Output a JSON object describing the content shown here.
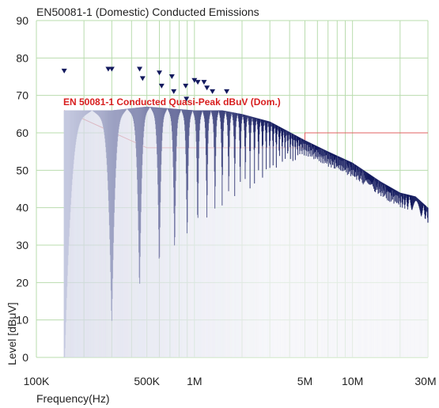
{
  "chart_data": {
    "type": "line",
    "title": "EN50081-1 (Domestic) Conducted Emissions",
    "xlabel": "Frequency(Hz)",
    "ylabel": "Level [dBμV]",
    "x_scale": "log",
    "xlim": [
      100000,
      30000000
    ],
    "ylim": [
      0,
      90
    ],
    "y_ticks": [
      "90",
      "80",
      "70",
      "60",
      "50",
      "40",
      "30",
      "20",
      "10",
      "0"
    ],
    "x_ticks": [
      {
        "label": "100K",
        "value": 100000
      },
      {
        "label": "500K",
        "value": 500000
      },
      {
        "label": "1M",
        "value": 1000000
      },
      {
        "label": "5M",
        "value": 5000000
      },
      {
        "label": "10M",
        "value": 10000000
      },
      {
        "label": "30M",
        "value": 30000000
      }
    ],
    "grid": true,
    "limit_line": {
      "label": "EN 50081-1 Conducted Quasi-Peak dBuV (Dom.)",
      "color": "#e06060",
      "points": [
        [
          150000,
          66
        ],
        [
          500000,
          56
        ],
        [
          5000000,
          56
        ],
        [
          5000000,
          60
        ],
        [
          30000000,
          60
        ]
      ]
    },
    "spectrum_envelope": [
      [
        150000,
        66
      ],
      [
        300000,
        66
      ],
      [
        500000,
        67
      ],
      [
        1000000,
        66
      ],
      [
        1500000,
        66
      ],
      [
        2000000,
        65
      ],
      [
        3000000,
        63
      ],
      [
        5000000,
        58
      ],
      [
        7000000,
        55
      ],
      [
        10000000,
        52
      ],
      [
        15000000,
        47
      ],
      [
        20000000,
        44
      ],
      [
        25000000,
        43
      ],
      [
        30000000,
        40
      ]
    ],
    "peak_markers": [
      {
        "f": 150000,
        "level": 76.5
      },
      {
        "f": 285000,
        "level": 77
      },
      {
        "f": 300000,
        "level": 77
      },
      {
        "f": 450000,
        "level": 77
      },
      {
        "f": 470000,
        "level": 74.5
      },
      {
        "f": 600000,
        "level": 76
      },
      {
        "f": 620000,
        "level": 72.5
      },
      {
        "f": 720000,
        "level": 75
      },
      {
        "f": 740000,
        "level": 71
      },
      {
        "f": 880000,
        "level": 72.5
      },
      {
        "f": 890000,
        "level": 69
      },
      {
        "f": 1000000,
        "level": 74
      },
      {
        "f": 1050000,
        "level": 73.5
      },
      {
        "f": 1150000,
        "level": 73.5
      },
      {
        "f": 1200000,
        "level": 72
      },
      {
        "f": 1300000,
        "level": 71
      },
      {
        "f": 1600000,
        "level": 71
      }
    ],
    "series_colors": {
      "spectrum_light": "#c4c8df",
      "spectrum_dark": "#131a5e",
      "markers": "#131a5e",
      "grid": "#b9dcae"
    }
  }
}
